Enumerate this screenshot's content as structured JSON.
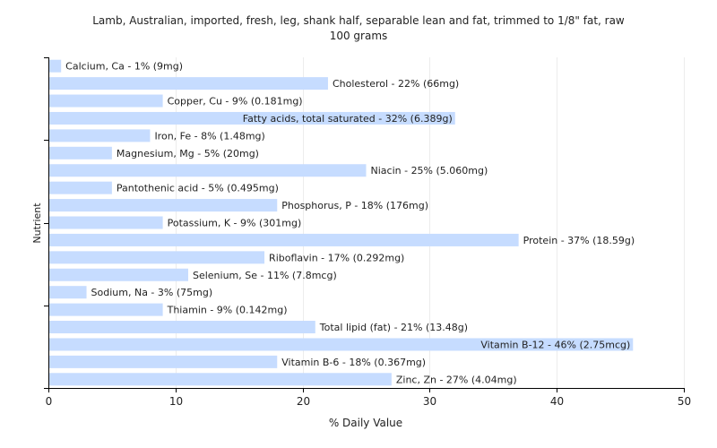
{
  "chart_data": {
    "type": "bar",
    "orientation": "horizontal",
    "title": "Lamb, Australian, imported, fresh, leg, shank half, separable lean and fat, trimmed to 1/8\" fat, raw",
    "subtitle": "100 grams",
    "xlabel": "% Daily Value",
    "ylabel": "Nutrient",
    "xlim": [
      0,
      50
    ],
    "xticks": [
      0,
      10,
      20,
      30,
      40,
      50
    ],
    "grid": true,
    "legend": "none",
    "bar_color": "#c6dcff",
    "categories": [
      "Calcium, Ca",
      "Cholesterol",
      "Copper, Cu",
      "Fatty acids, total saturated",
      "Iron, Fe",
      "Magnesium, Mg",
      "Niacin",
      "Pantothenic acid",
      "Phosphorus, P",
      "Potassium, K",
      "Protein",
      "Riboflavin",
      "Selenium, Se",
      "Sodium, Na",
      "Thiamin",
      "Total lipid (fat)",
      "Vitamin B-12",
      "Vitamin B-6",
      "Zinc, Zn"
    ],
    "values": [
      1,
      22,
      9,
      32,
      8,
      5,
      25,
      5,
      18,
      9,
      37,
      17,
      11,
      3,
      9,
      21,
      46,
      18,
      27
    ],
    "labels": [
      "Calcium, Ca - 1% (9mg)",
      "Cholesterol - 22% (66mg)",
      "Copper, Cu - 9% (0.181mg)",
      "Fatty acids, total saturated - 32% (6.389g)",
      "Iron, Fe - 8% (1.48mg)",
      "Magnesium, Mg - 5% (20mg)",
      "Niacin - 25% (5.060mg)",
      "Pantothenic acid - 5% (0.495mg)",
      "Phosphorus, P - 18% (176mg)",
      "Potassium, K - 9% (301mg)",
      "Protein - 37% (18.59g)",
      "Riboflavin - 17% (0.292mg)",
      "Selenium, Se - 11% (7.8mcg)",
      "Sodium, Na - 3% (75mg)",
      "Thiamin - 9% (0.142mg)",
      "Total lipid (fat) - 21% (13.48g)",
      "Vitamin B-12 - 46% (2.75mcg)",
      "Vitamin B-6 - 18% (0.367mg)",
      "Zinc, Zn - 27% (4.04mg)"
    ]
  }
}
